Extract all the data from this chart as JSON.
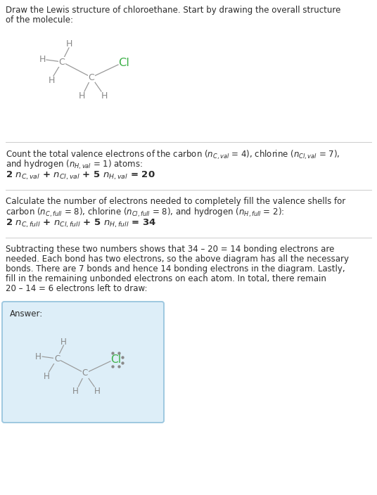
{
  "bg_color": "#ffffff",
  "answer_bg_color": "#ddeef8",
  "answer_border_color": "#9ec8e0",
  "text_color": "#2b2b2b",
  "atom_color": "#888888",
  "cl_color": "#3db048",
  "bond_color": "#999999",
  "divider_color": "#cccccc",
  "font_size": 8.5,
  "mol_font_size": 9.0,
  "title_line1": "Draw the Lewis structure of chloroethane. Start by drawing the overall structure",
  "title_line2": "of the molecule:",
  "s1_line1": "Count the total valence electrons of the carbon ($n_{C,val}$ = 4), chlorine ($n_{Cl,val}$ = 7),",
  "s1_line2": "and hydrogen ($n_{H,val}$ = 1) atoms:",
  "s1_formula": "2 $n_{C,val}$ + $n_{Cl,val}$ + 5 $n_{H,val}$ = 20",
  "s2_line1": "Calculate the number of electrons needed to completely fill the valence shells for",
  "s2_line2": "carbon ($n_{C,full}$ = 8), chlorine ($n_{Cl,full}$ = 8), and hydrogen ($n_{H,full}$ = 2):",
  "s2_formula": "2 $n_{C,full}$ + $n_{Cl,full}$ + 5 $n_{H,full}$ = 34",
  "s3_line1": "Subtracting these two numbers shows that 34 – 20 = 14 bonding electrons are",
  "s3_line2": "needed. Each bond has two electrons, so the above diagram has all the necessary",
  "s3_line3": "bonds. There are 7 bonds and hence 14 bonding electrons in the diagram. Lastly,",
  "s3_line4": "fill in the remaining unbonded electrons on each atom. In total, there remain",
  "s3_line5": "20 – 14 = 6 electrons left to draw:",
  "answer_label": "Answer:"
}
